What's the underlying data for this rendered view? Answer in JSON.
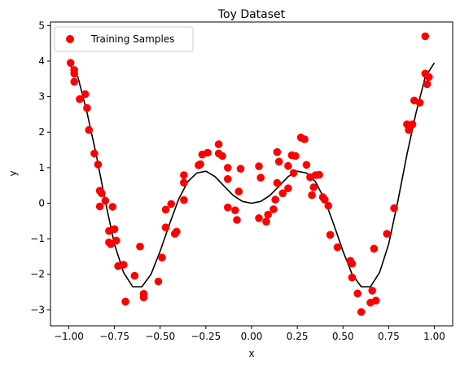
{
  "chart_data": {
    "type": "scatter",
    "title": "Toy Dataset",
    "xlabel": "x",
    "ylabel": "y",
    "xlim": [
      -1.1,
      1.1
    ],
    "ylim": [
      -3.45,
      5.1
    ],
    "xticks": [
      -1.0,
      -0.75,
      -0.5,
      -0.25,
      0.0,
      0.25,
      0.5,
      0.75,
      1.0
    ],
    "xtick_labels": [
      "−1.00",
      "−0.75",
      "−0.50",
      "−0.25",
      "0.00",
      "0.25",
      "0.50",
      "0.75",
      "1.00"
    ],
    "yticks": [
      -3,
      -2,
      -1,
      0,
      1,
      2,
      3,
      4,
      5
    ],
    "ytick_labels": [
      "−3",
      "−2",
      "−1",
      "0",
      "1",
      "2",
      "3",
      "4",
      "5"
    ],
    "grid": false,
    "legend": {
      "position": "top-left",
      "entries": [
        "Training Samples"
      ]
    },
    "series": [
      {
        "name": "Training Samples",
        "kind": "scatter",
        "color": "#ff0000",
        "points": [
          [
            -0.99,
            3.95
          ],
          [
            -0.97,
            3.75
          ],
          [
            -0.97,
            3.65
          ],
          [
            -0.97,
            3.42
          ],
          [
            -0.94,
            2.93
          ],
          [
            -0.91,
            3.07
          ],
          [
            -0.9,
            2.68
          ],
          [
            -0.89,
            2.06
          ],
          [
            -0.86,
            1.4
          ],
          [
            -0.84,
            1.09
          ],
          [
            -0.83,
            0.35
          ],
          [
            -0.82,
            0.28
          ],
          [
            -0.83,
            -0.09
          ],
          [
            -0.8,
            0.07
          ],
          [
            -0.78,
            -0.78
          ],
          [
            -0.78,
            -1.1
          ],
          [
            -0.77,
            -1.15
          ],
          [
            -0.76,
            -0.1
          ],
          [
            -0.75,
            -0.73
          ],
          [
            -0.74,
            -1.05
          ],
          [
            -0.73,
            -1.77
          ],
          [
            -0.7,
            -1.73
          ],
          [
            -0.69,
            -2.77
          ],
          [
            -0.64,
            -2.04
          ],
          [
            -0.61,
            -1.22
          ],
          [
            -0.59,
            -2.55
          ],
          [
            -0.59,
            -2.65
          ],
          [
            -0.51,
            -2.2
          ],
          [
            -0.49,
            -1.53
          ],
          [
            -0.47,
            -0.68
          ],
          [
            -0.47,
            -0.18
          ],
          [
            -0.44,
            -0.02
          ],
          [
            -0.42,
            -0.86
          ],
          [
            -0.41,
            -0.8
          ],
          [
            -0.37,
            0.09
          ],
          [
            -0.37,
            0.58
          ],
          [
            -0.37,
            0.79
          ],
          [
            -0.29,
            1.07
          ],
          [
            -0.28,
            1.1
          ],
          [
            -0.27,
            1.37
          ],
          [
            -0.24,
            1.42
          ],
          [
            -0.18,
            1.66
          ],
          [
            -0.18,
            1.4
          ],
          [
            -0.16,
            1.33
          ],
          [
            -0.13,
            1.0
          ],
          [
            -0.13,
            0.68
          ],
          [
            -0.13,
            -0.12
          ],
          [
            -0.09,
            -0.2
          ],
          [
            -0.08,
            -0.47
          ],
          [
            -0.07,
            0.33
          ],
          [
            -0.06,
            0.97
          ],
          [
            0.04,
            1.04
          ],
          [
            0.04,
            -0.42
          ],
          [
            0.05,
            0.72
          ],
          [
            0.08,
            -0.52
          ],
          [
            0.09,
            -0.32
          ],
          [
            0.12,
            -0.17
          ],
          [
            0.13,
            0.1
          ],
          [
            0.14,
            0.57
          ],
          [
            0.14,
            1.44
          ],
          [
            0.15,
            1.17
          ],
          [
            0.17,
            0.28
          ],
          [
            0.2,
            1.05
          ],
          [
            0.2,
            0.42
          ],
          [
            0.22,
            1.35
          ],
          [
            0.23,
            0.85
          ],
          [
            0.24,
            1.33
          ],
          [
            0.27,
            1.85
          ],
          [
            0.29,
            1.8
          ],
          [
            0.3,
            1.08
          ],
          [
            0.32,
            0.73
          ],
          [
            0.33,
            0.23
          ],
          [
            0.34,
            0.45
          ],
          [
            0.35,
            0.79
          ],
          [
            0.37,
            0.8
          ],
          [
            0.39,
            0.17
          ],
          [
            0.4,
            0.1
          ],
          [
            0.42,
            -0.07
          ],
          [
            0.43,
            -0.89
          ],
          [
            0.47,
            -1.24
          ],
          [
            0.54,
            -1.62
          ],
          [
            0.55,
            -1.7
          ],
          [
            0.55,
            -2.09
          ],
          [
            0.58,
            -2.54
          ],
          [
            0.6,
            -3.06
          ],
          [
            0.65,
            -2.8
          ],
          [
            0.66,
            -2.46
          ],
          [
            0.67,
            -1.28
          ],
          [
            0.68,
            -2.74
          ],
          [
            0.74,
            -0.86
          ],
          [
            0.78,
            -0.14
          ],
          [
            0.85,
            2.22
          ],
          [
            0.86,
            2.06
          ],
          [
            0.88,
            2.22
          ],
          [
            0.89,
            2.89
          ],
          [
            0.92,
            2.83
          ],
          [
            0.95,
            4.7
          ],
          [
            0.95,
            3.65
          ],
          [
            0.96,
            3.35
          ],
          [
            0.97,
            3.55
          ]
        ]
      },
      {
        "kind": "line",
        "color": "#000000",
        "x": [
          -1.0,
          -0.95,
          -0.9,
          -0.85,
          -0.8,
          -0.75,
          -0.7,
          -0.65,
          -0.6,
          -0.55,
          -0.5,
          -0.45,
          -0.4,
          -0.35,
          -0.3,
          -0.25,
          -0.2,
          -0.15,
          -0.1,
          -0.05,
          0.0,
          0.05,
          0.1,
          0.15,
          0.2,
          0.25,
          0.3,
          0.35,
          0.4,
          0.45,
          0.5,
          0.55,
          0.6,
          0.65,
          0.7,
          0.75,
          0.8,
          0.85,
          0.9,
          0.95,
          1.0
        ],
        "y": [
          3.95,
          3.55,
          2.55,
          1.38,
          0.05,
          -1.15,
          -1.95,
          -2.35,
          -2.35,
          -2.0,
          -1.35,
          -0.6,
          0.1,
          0.6,
          0.85,
          0.9,
          0.75,
          0.48,
          0.22,
          0.05,
          0.0,
          0.05,
          0.22,
          0.48,
          0.75,
          0.9,
          0.85,
          0.6,
          0.1,
          -0.6,
          -1.35,
          -2.0,
          -2.35,
          -2.35,
          -1.95,
          -1.15,
          0.05,
          1.38,
          2.55,
          3.55,
          3.95
        ]
      }
    ]
  }
}
